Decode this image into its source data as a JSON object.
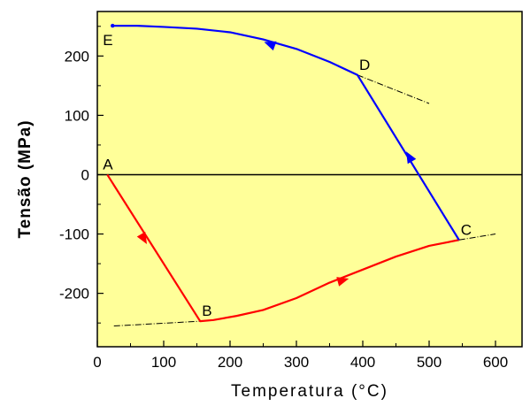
{
  "chart_data": {
    "type": "line",
    "xlabel": "Temperatura (°C)",
    "ylabel": "Tensão (MPa)",
    "xlim": [
      0,
      640
    ],
    "ylim": [
      -290,
      275
    ],
    "x_ticks": [
      "0",
      "100",
      "200",
      "300",
      "400",
      "500",
      "600"
    ],
    "y_ticks": [
      "200",
      "100",
      "0",
      "-100",
      "-200"
    ],
    "grid": false,
    "background": "#ffff99",
    "series": [
      {
        "color": "#ff0000",
        "points": [
          [
            15,
            0
          ],
          [
            155,
            -247
          ],
          [
            175,
            -245
          ],
          [
            210,
            -238
          ],
          [
            250,
            -228
          ],
          [
            300,
            -208
          ],
          [
            350,
            -182
          ],
          [
            400,
            -160
          ],
          [
            450,
            -138
          ],
          [
            500,
            -120
          ],
          [
            545,
            -110
          ]
        ]
      },
      {
        "color": "#0000ff",
        "points": [
          [
            545,
            -110
          ],
          [
            392,
            168
          ],
          [
            350,
            190
          ],
          [
            300,
            212
          ],
          [
            250,
            228
          ],
          [
            200,
            240
          ],
          [
            150,
            246
          ],
          [
            100,
            249
          ],
          [
            60,
            251
          ],
          [
            23,
            251
          ]
        ]
      }
    ],
    "reference_lines": [
      {
        "points": [
          [
            25,
            -255
          ],
          [
            155,
            -247
          ]
        ]
      },
      {
        "points": [
          [
            392,
            168
          ],
          [
            500,
            120
          ]
        ]
      },
      {
        "points": [
          [
            545,
            -110
          ],
          [
            600,
            -100
          ]
        ]
      }
    ],
    "arrows": [
      {
        "series": 0,
        "at": [
          70,
          -108
        ],
        "angle_deg": 60
      },
      {
        "series": 0,
        "at": [
          370,
          -178
        ],
        "angle_deg": -15
      },
      {
        "series": 1,
        "at": [
          470,
          30
        ],
        "angle_deg": -120
      },
      {
        "series": 1,
        "at": [
          260,
          220
        ],
        "angle_deg": 200
      }
    ],
    "zero_line": true,
    "point_labels": [
      {
        "text": "A",
        "x": 15,
        "y": 0,
        "pos": "above"
      },
      {
        "text": "B",
        "x": 155,
        "y": -247,
        "pos": "above-right"
      },
      {
        "text": "C",
        "x": 545,
        "y": -110,
        "pos": "above-right"
      },
      {
        "text": "D",
        "x": 392,
        "y": 168,
        "pos": "above-right"
      },
      {
        "text": "E",
        "x": 23,
        "y": 251,
        "pos": "below"
      }
    ]
  }
}
